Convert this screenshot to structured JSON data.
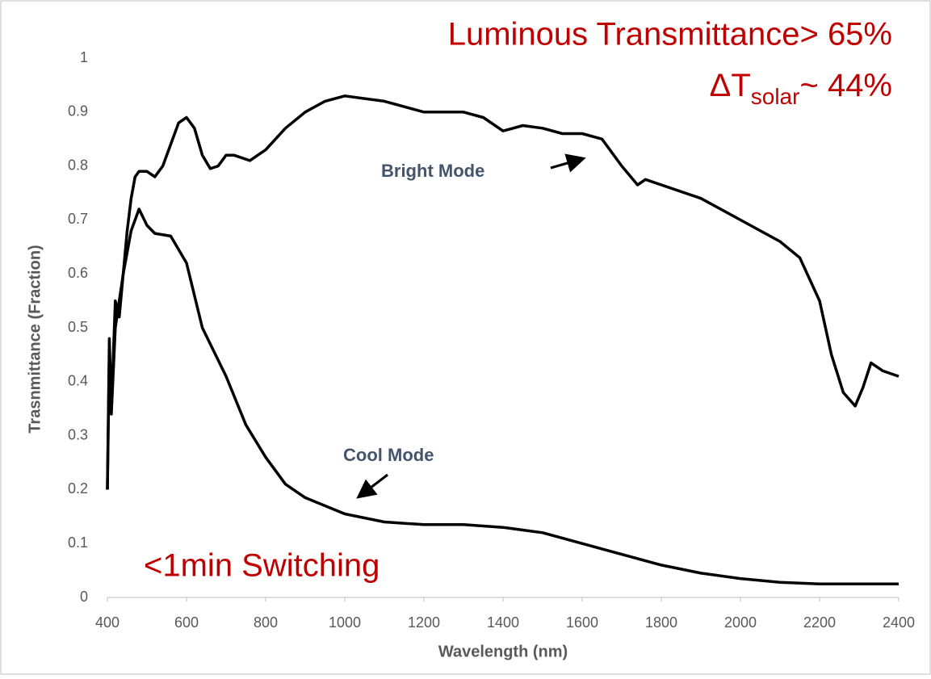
{
  "chart_data": {
    "type": "line",
    "xlabel": "Wavelength (nm)",
    "ylabel": "Trasnmittance (Fraction)",
    "xlim": [
      400,
      2400
    ],
    "xticks": [
      400,
      600,
      800,
      1000,
      1200,
      1400,
      1600,
      1800,
      2000,
      2200,
      2400
    ],
    "ylim": [
      0,
      1
    ],
    "yticks": [
      0,
      0.1,
      0.2,
      0.3,
      0.4,
      0.5,
      0.6,
      0.7,
      0.8,
      0.9,
      1
    ],
    "grid": false,
    "series": [
      {
        "name": "Bright Mode",
        "color": "#000000",
        "x": [
          400,
          405,
          410,
          420,
          430,
          440,
          450,
          460,
          470,
          480,
          500,
          520,
          540,
          560,
          580,
          600,
          620,
          640,
          660,
          680,
          700,
          720,
          760,
          800,
          850,
          900,
          950,
          1000,
          1100,
          1200,
          1300,
          1350,
          1400,
          1450,
          1500,
          1550,
          1600,
          1650,
          1700,
          1740,
          1760,
          1800,
          1900,
          2000,
          2100,
          2150,
          2200,
          2230,
          2260,
          2290,
          2310,
          2330,
          2360,
          2400
        ],
        "values": [
          0.2,
          0.48,
          0.35,
          0.55,
          0.52,
          0.6,
          0.68,
          0.74,
          0.78,
          0.79,
          0.79,
          0.78,
          0.8,
          0.84,
          0.88,
          0.89,
          0.87,
          0.82,
          0.795,
          0.8,
          0.82,
          0.82,
          0.81,
          0.83,
          0.87,
          0.9,
          0.92,
          0.93,
          0.92,
          0.9,
          0.9,
          0.89,
          0.865,
          0.875,
          0.87,
          0.86,
          0.86,
          0.85,
          0.8,
          0.765,
          0.775,
          0.765,
          0.74,
          0.7,
          0.66,
          0.63,
          0.55,
          0.45,
          0.38,
          0.355,
          0.39,
          0.435,
          0.42,
          0.41
        ]
      },
      {
        "name": "Cool Mode",
        "color": "#000000",
        "x": [
          400,
          405,
          410,
          420,
          440,
          460,
          480,
          500,
          520,
          560,
          600,
          640,
          700,
          750,
          800,
          850,
          900,
          1000,
          1100,
          1200,
          1300,
          1400,
          1500,
          1600,
          1700,
          1800,
          1900,
          2000,
          2100,
          2200,
          2400
        ],
        "values": [
          0.2,
          0.45,
          0.34,
          0.5,
          0.6,
          0.68,
          0.72,
          0.69,
          0.675,
          0.67,
          0.62,
          0.5,
          0.41,
          0.32,
          0.26,
          0.21,
          0.185,
          0.155,
          0.14,
          0.135,
          0.135,
          0.13,
          0.12,
          0.1,
          0.08,
          0.06,
          0.045,
          0.035,
          0.028,
          0.025,
          0.025
        ]
      }
    ],
    "annotations": [
      "Luminous Transmittance> 65%",
      "<1min Switching"
    ],
    "delta_annotation": [
      "ΔT",
      "solar",
      "~ 44%"
    ]
  }
}
